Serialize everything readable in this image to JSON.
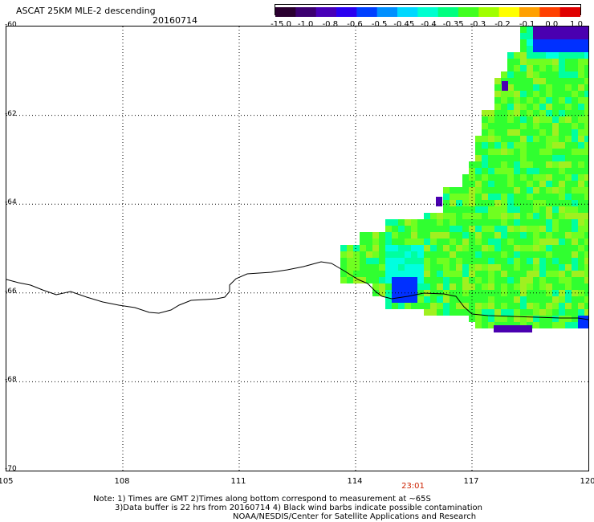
{
  "header": {
    "title": "ASCAT 25KM MLE-2 descending",
    "date": "20160714"
  },
  "colorbar": {
    "labels": [
      "-15.0",
      "-1.0",
      "-0.8",
      "-0.6",
      "-0.5",
      "-0.45",
      "-0.4",
      "-0.35",
      "-0.3",
      "-0.2",
      "-0.1",
      "0.0",
      "1.0"
    ],
    "colors": [
      "#2a0030",
      "#3c0070",
      "#4800b8",
      "#2a00f0",
      "#0040ff",
      "#0090ff",
      "#00d8ff",
      "#00ffd0",
      "#00ff80",
      "#40ff20",
      "#a0ff00",
      "#ffff00",
      "#ffa000",
      "#ff4000",
      "#e00000"
    ]
  },
  "map": {
    "lat_range": [
      -70,
      -60
    ],
    "lon_range": [
      105,
      120
    ],
    "lat_ticks": [
      "-60",
      "-62",
      "-64",
      "-66",
      "-68",
      "-70"
    ],
    "lon_ticks": [
      "105",
      "108",
      "111",
      "114",
      "117",
      "120"
    ],
    "grid": true,
    "palette": {
      "green": "#30ff30",
      "lime": "#70ff20",
      "yellowgreen": "#a0f020",
      "cyan": "#00ffe0",
      "teal": "#00ffa0",
      "blue": "#0030ff",
      "purple": "#4a00b0"
    },
    "time_labels": [
      {
        "lon": 115.5,
        "text": "23:01"
      }
    ]
  },
  "notes": {
    "line1": "Note: 1) Times are GMT 2)Times along bottom correspond to measurement at ~65S",
    "line2": "3)Data buffer is 22 hrs from 20160714 4) Black wind barbs indicate possible contamination",
    "line3": "NOAA/NESDIS/Center for Satellite Applications and Research"
  }
}
